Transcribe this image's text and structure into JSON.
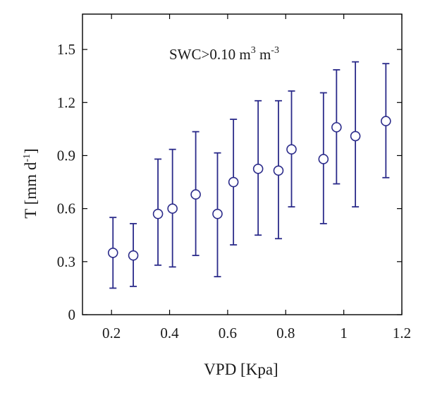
{
  "chart_data": {
    "type": "scatter",
    "xlabel": "VPD [Kpa]",
    "ylabel_main": "T [mm d",
    "ylabel_sup": "-1",
    "ylabel_tail": "]",
    "annotation": {
      "main": "SWC>0.10 m",
      "sup1": "3",
      "mid": " m",
      "sup2": "-3"
    },
    "xlim": [
      0.1,
      1.2
    ],
    "ylim": [
      0,
      1.7
    ],
    "xticks": [
      "0.2",
      "0.4",
      "0.6",
      "0.8",
      "1",
      "1.2"
    ],
    "xtick_values": [
      0.2,
      0.4,
      0.6,
      0.8,
      1.0,
      1.2
    ],
    "yticks": [
      "0",
      "0.3",
      "0.6",
      "0.9",
      "1.2",
      "1.5"
    ],
    "ytick_values": [
      0,
      0.3,
      0.6,
      0.9,
      1.2,
      1.5
    ],
    "grid": false,
    "marker_color": "#2b2b8a",
    "points": [
      {
        "x": 0.205,
        "y": 0.35,
        "low": 0.15,
        "high": 0.55
      },
      {
        "x": 0.275,
        "y": 0.335,
        "low": 0.16,
        "high": 0.515
      },
      {
        "x": 0.36,
        "y": 0.57,
        "low": 0.28,
        "high": 0.88
      },
      {
        "x": 0.41,
        "y": 0.6,
        "low": 0.27,
        "high": 0.935
      },
      {
        "x": 0.49,
        "y": 0.68,
        "low": 0.335,
        "high": 1.035
      },
      {
        "x": 0.565,
        "y": 0.57,
        "low": 0.215,
        "high": 0.915
      },
      {
        "x": 0.62,
        "y": 0.75,
        "low": 0.395,
        "high": 1.105
      },
      {
        "x": 0.705,
        "y": 0.825,
        "low": 0.45,
        "high": 1.21
      },
      {
        "x": 0.775,
        "y": 0.815,
        "low": 0.43,
        "high": 1.21
      },
      {
        "x": 0.82,
        "y": 0.935,
        "low": 0.61,
        "high": 1.265
      },
      {
        "x": 0.93,
        "y": 0.88,
        "low": 0.515,
        "high": 1.255
      },
      {
        "x": 0.975,
        "y": 1.06,
        "low": 0.74,
        "high": 1.385
      },
      {
        "x": 1.04,
        "y": 1.01,
        "low": 0.61,
        "high": 1.43
      },
      {
        "x": 1.145,
        "y": 1.095,
        "low": 0.775,
        "high": 1.42
      }
    ]
  }
}
